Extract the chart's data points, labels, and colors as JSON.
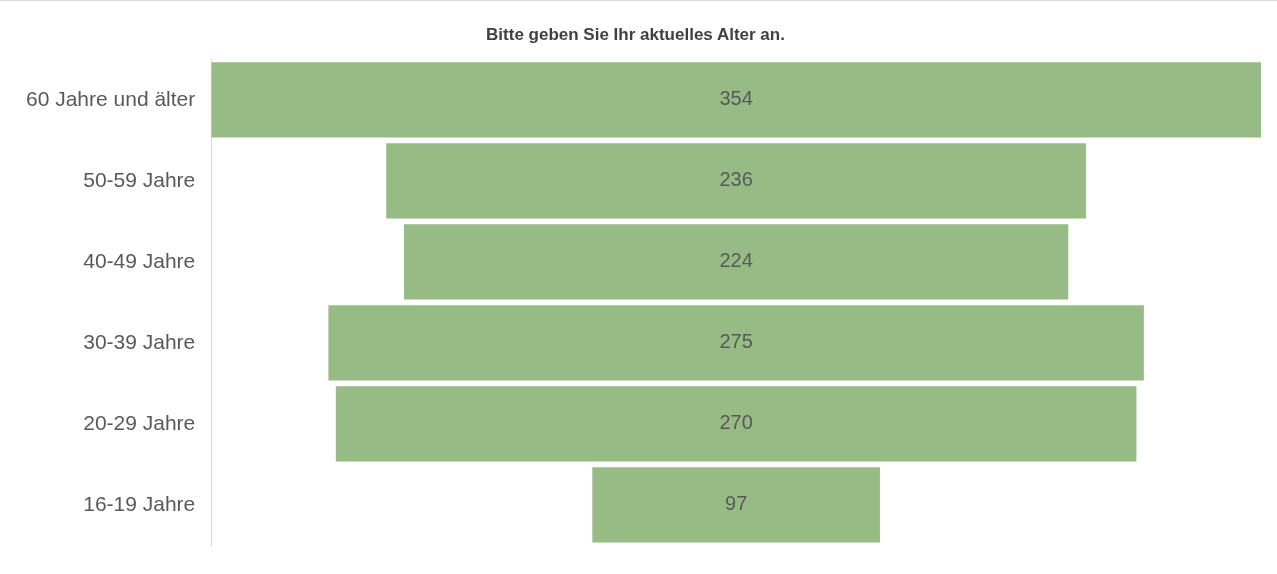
{
  "chart_data": {
    "type": "other",
    "title": "Bitte geben Sie Ihr aktuelles Alter an.",
    "categories": [
      "60 Jahre und älter",
      "50-59 Jahre",
      "40-49 Jahre",
      "30-39 Jahre",
      "20-29 Jahre",
      "16-19 Jahre"
    ],
    "values": [
      354,
      236,
      224,
      275,
      270,
      97
    ],
    "color": "#97bb84",
    "data_labels": true
  }
}
